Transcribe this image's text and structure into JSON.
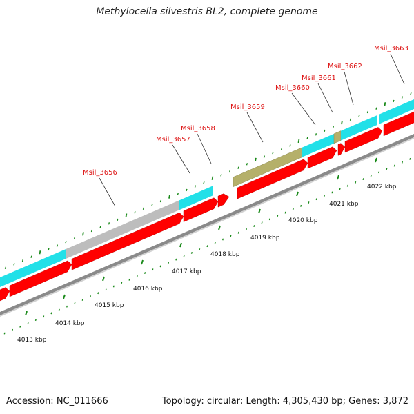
{
  "title": "Methylocella silvestris BL2, complete genome",
  "footer": {
    "accession": "Accession: NC_011666",
    "info": "Topology: circular; Length: 4,305,430 bp; Genes: 3,872"
  },
  "colors": {
    "cds_feature": "#ff0000",
    "gene_feature": "#22e0e8",
    "other_feature": "#bdbdbd",
    "rna_feature": "#b5b06a",
    "tick_mark": "#1a8a1a",
    "backbone": "#999999",
    "gene_label": "#dd1111"
  },
  "gene_labels": [
    {
      "name": "Msil_3656"
    },
    {
      "name": "Msil_3657"
    },
    {
      "name": "Msil_3658"
    },
    {
      "name": "Msil_3659"
    },
    {
      "name": "Msil_3660"
    },
    {
      "name": "Msil_3661"
    },
    {
      "name": "Msil_3662"
    },
    {
      "name": "Msil_3663"
    }
  ],
  "kbp_ticks": [
    {
      "label": "4013 kbp"
    },
    {
      "label": "4014 kbp"
    },
    {
      "label": "4015 kbp"
    },
    {
      "label": "4016 kbp"
    },
    {
      "label": "4017 kbp"
    },
    {
      "label": "4018 kbp"
    },
    {
      "label": "4019 kbp"
    },
    {
      "label": "4020 kbp"
    },
    {
      "label": "4021 kbp"
    },
    {
      "label": "4022 kbp"
    }
  ]
}
